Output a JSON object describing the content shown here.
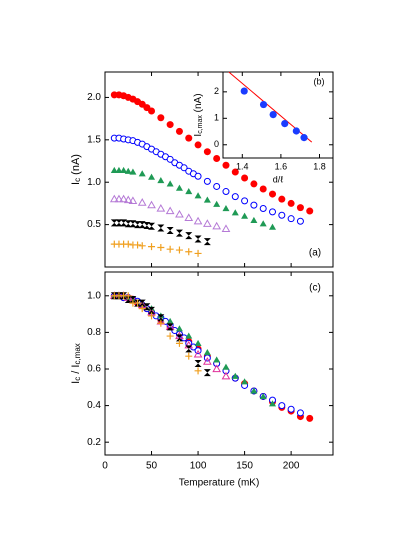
{
  "chart_data": [
    {
      "type": "scatter",
      "panel_label": "(a)",
      "y_label": [
        "I",
        "c",
        " (nA)"
      ],
      "xlim": [
        0,
        245
      ],
      "xticks": [
        0,
        50,
        100,
        150,
        200
      ],
      "xtick_labels": false,
      "ylim": [
        0,
        2.3
      ],
      "yticks": [
        0.5,
        {
          "value": 1.0,
          "label": "1.0"
        },
        1.5,
        {
          "value": 2.0,
          "label": "2.0"
        }
      ],
      "series": [
        {
          "color": "#ff0000",
          "marker": "circle-filled",
          "x": [
            10,
            15,
            20,
            25,
            30,
            35,
            40,
            45,
            50,
            60,
            70,
            80,
            90,
            100,
            110,
            120,
            130,
            140,
            150,
            160,
            170,
            180,
            190,
            200,
            210,
            220
          ],
          "values": [
            2.03,
            2.03,
            2.02,
            2.0,
            1.98,
            1.95,
            1.92,
            1.88,
            1.84,
            1.76,
            1.68,
            1.6,
            1.52,
            1.44,
            1.36,
            1.28,
            1.2,
            1.12,
            1.05,
            0.98,
            0.92,
            0.86,
            0.8,
            0.75,
            0.7,
            0.66
          ]
        },
        {
          "color": "#0000ff",
          "marker": "circle-open",
          "x": [
            10,
            15,
            20,
            25,
            30,
            35,
            40,
            45,
            50,
            55,
            60,
            65,
            70,
            75,
            80,
            85,
            90,
            95,
            100,
            110,
            120,
            130,
            140,
            150,
            160,
            170,
            180,
            190,
            200,
            210
          ],
          "values": [
            1.52,
            1.52,
            1.51,
            1.5,
            1.49,
            1.47,
            1.45,
            1.42,
            1.39,
            1.36,
            1.33,
            1.3,
            1.27,
            1.23,
            1.2,
            1.17,
            1.13,
            1.1,
            1.07,
            1.01,
            0.95,
            0.89,
            0.83,
            0.78,
            0.73,
            0.69,
            0.65,
            0.61,
            0.57,
            0.54
          ]
        },
        {
          "color": "#1f9a55",
          "marker": "triangle-filled",
          "x": [
            10,
            15,
            20,
            25,
            30,
            40,
            50,
            60,
            70,
            80,
            90,
            100,
            110,
            120,
            130,
            140,
            150,
            160,
            170,
            180
          ],
          "values": [
            1.14,
            1.14,
            1.14,
            1.13,
            1.12,
            1.1,
            1.06,
            1.02,
            0.98,
            0.93,
            0.89,
            0.84,
            0.79,
            0.74,
            0.69,
            0.64,
            0.6,
            0.55,
            0.51,
            0.47
          ]
        },
        {
          "color": "#b57ad6",
          "marker": "triangle-open",
          "x": [
            10,
            15,
            20,
            25,
            30,
            40,
            50,
            60,
            70,
            80,
            90,
            100,
            110,
            120,
            130
          ],
          "values": [
            0.8,
            0.8,
            0.8,
            0.79,
            0.78,
            0.76,
            0.73,
            0.69,
            0.66,
            0.62,
            0.58,
            0.54,
            0.51,
            0.48,
            0.45
          ]
        },
        {
          "color": "#000000",
          "marker": "bowtie",
          "x": [
            10,
            15,
            20,
            25,
            30,
            35,
            40,
            45,
            50,
            60,
            70,
            80,
            90,
            100,
            110
          ],
          "values": [
            0.52,
            0.52,
            0.52,
            0.51,
            0.51,
            0.5,
            0.5,
            0.49,
            0.48,
            0.46,
            0.43,
            0.4,
            0.37,
            0.33,
            0.3
          ]
        },
        {
          "color": "#f0a020",
          "marker": "plus",
          "x": [
            10,
            15,
            20,
            25,
            30,
            35,
            40,
            50,
            60,
            70,
            80,
            90,
            100
          ],
          "values": [
            0.27,
            0.27,
            0.27,
            0.27,
            0.26,
            0.26,
            0.25,
            0.24,
            0.23,
            0.21,
            0.2,
            0.18,
            0.16
          ]
        }
      ]
    },
    {
      "type": "scatter",
      "panel_label": "(b)",
      "x_label": "d/ℓ",
      "y_label": [
        "I",
        "c,max",
        " (nA)"
      ],
      "xlim": [
        1.3,
        1.87
      ],
      "xticks": [
        1.4,
        1.6,
        1.8
      ],
      "ylim": [
        -0.5,
        2.75
      ],
      "yticks": [
        0,
        1,
        2
      ],
      "series": [
        {
          "color": "#ff0000",
          "marker": "line",
          "x": [
            1.33,
            1.76
          ],
          "values": [
            2.75,
            0.1
          ]
        },
        {
          "color": "#1a3cff",
          "marker": "circle-filled",
          "x": [
            1.41,
            1.51,
            1.56,
            1.62,
            1.68,
            1.72
          ],
          "values": [
            2.03,
            1.52,
            1.14,
            0.8,
            0.52,
            0.27
          ]
        }
      ]
    },
    {
      "type": "scatter",
      "panel_label": "(c)",
      "x_label": "Temperature  (mK)",
      "y_label": [
        "I",
        "c",
        " / I",
        "c,max"
      ],
      "xlim": [
        0,
        245
      ],
      "xticks": [
        0,
        50,
        100,
        150,
        200
      ],
      "ylim": [
        0.13,
        1.13
      ],
      "yticks": [
        0.2,
        0.4,
        0.6,
        0.8,
        {
          "value": 1.0,
          "label": "1.0"
        }
      ],
      "series": [
        {
          "color": "#ff0000",
          "marker": "circle-filled",
          "x": [
            10,
            15,
            20,
            25,
            30,
            35,
            40,
            45,
            50,
            60,
            70,
            80,
            90,
            100,
            110,
            120,
            130,
            140,
            150,
            160,
            170,
            180,
            190,
            200,
            210,
            220
          ],
          "values": [
            1.0,
            1.0,
            0.99,
            0.99,
            0.98,
            0.96,
            0.95,
            0.93,
            0.91,
            0.87,
            0.83,
            0.79,
            0.75,
            0.71,
            0.67,
            0.63,
            0.59,
            0.55,
            0.52,
            0.48,
            0.45,
            0.42,
            0.39,
            0.37,
            0.34,
            0.33
          ]
        },
        {
          "color": "#0000ff",
          "marker": "circle-open",
          "x": [
            10,
            15,
            20,
            25,
            30,
            35,
            40,
            45,
            50,
            55,
            60,
            65,
            70,
            75,
            80,
            85,
            90,
            95,
            100,
            110,
            120,
            130,
            140,
            150,
            160,
            170,
            180,
            190,
            200,
            210
          ],
          "values": [
            1.0,
            1.0,
            0.99,
            0.99,
            0.98,
            0.97,
            0.95,
            0.93,
            0.91,
            0.89,
            0.88,
            0.86,
            0.84,
            0.81,
            0.79,
            0.77,
            0.74,
            0.72,
            0.7,
            0.66,
            0.63,
            0.59,
            0.55,
            0.51,
            0.48,
            0.45,
            0.43,
            0.4,
            0.38,
            0.36
          ]
        },
        {
          "color": "#1f9a55",
          "marker": "triangle-filled",
          "x": [
            10,
            15,
            20,
            25,
            30,
            40,
            50,
            60,
            70,
            80,
            90,
            100,
            110,
            120,
            130,
            140,
            150,
            160,
            170,
            180
          ],
          "values": [
            1.0,
            1.0,
            1.0,
            0.99,
            0.98,
            0.96,
            0.93,
            0.89,
            0.86,
            0.82,
            0.78,
            0.74,
            0.69,
            0.65,
            0.61,
            0.56,
            0.53,
            0.48,
            0.45,
            0.41
          ]
        },
        {
          "color": "#e0309a",
          "marker": "triangle-open",
          "x": [
            10,
            15,
            20,
            25,
            30,
            40,
            50,
            60,
            70,
            80,
            90,
            100,
            110,
            120,
            130
          ],
          "values": [
            1.0,
            1.0,
            1.0,
            0.99,
            0.98,
            0.95,
            0.91,
            0.86,
            0.83,
            0.78,
            0.73,
            0.68,
            0.64,
            0.6,
            0.56
          ]
        },
        {
          "color": "#000000",
          "marker": "bowtie",
          "x": [
            10,
            15,
            20,
            25,
            30,
            35,
            40,
            45,
            50,
            60,
            70,
            80,
            90,
            100,
            110
          ],
          "values": [
            1.0,
            1.0,
            1.0,
            0.98,
            0.98,
            0.96,
            0.96,
            0.94,
            0.92,
            0.88,
            0.83,
            0.77,
            0.71,
            0.63,
            0.58
          ]
        },
        {
          "color": "#f0a020",
          "marker": "plus",
          "x": [
            10,
            15,
            20,
            25,
            30,
            35,
            40,
            50,
            60,
            70,
            80,
            90,
            100
          ],
          "values": [
            1.0,
            1.0,
            1.0,
            1.0,
            0.96,
            0.96,
            0.93,
            0.89,
            0.85,
            0.78,
            0.74,
            0.67,
            0.59
          ]
        }
      ]
    }
  ]
}
